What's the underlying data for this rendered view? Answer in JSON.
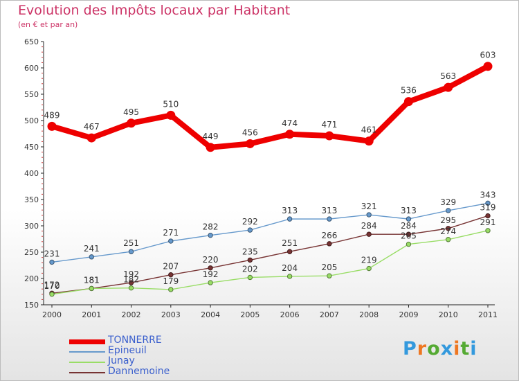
{
  "chart_data": {
    "type": "line",
    "title": "Evolution des Impôts locaux par Habitant",
    "subtitle": "(en € et par an)",
    "xlabel": "",
    "ylabel": "",
    "categories": [
      "2000",
      "2001",
      "2002",
      "2003",
      "2004",
      "2005",
      "2006",
      "2007",
      "2008",
      "2009",
      "2010",
      "2011"
    ],
    "ylim": [
      150,
      650
    ],
    "yticks": [
      150,
      200,
      250,
      300,
      350,
      400,
      450,
      500,
      550,
      600,
      650
    ],
    "grid": false,
    "legend_position": "bottom-left",
    "series": [
      {
        "name": "TONNERRE",
        "color": "#ee0000",
        "values": [
          489,
          467,
          495,
          510,
          449,
          456,
          474,
          471,
          461,
          536,
          563,
          603
        ]
      },
      {
        "name": "Epineuil",
        "color": "#6699cc",
        "values": [
          231,
          241,
          251,
          271,
          282,
          292,
          313,
          313,
          321,
          313,
          329,
          343
        ]
      },
      {
        "name": "Junay",
        "color": "#99dd66",
        "values": [
          170,
          181,
          182,
          179,
          192,
          202,
          204,
          205,
          219,
          265,
          274,
          291
        ]
      },
      {
        "name": "Dannemoine",
        "color": "#773333",
        "values": [
          172,
          181,
          192,
          207,
          220,
          235,
          251,
          266,
          284,
          284,
          295,
          319
        ]
      }
    ]
  },
  "branding": {
    "logo_letters": [
      "P",
      "r",
      "o",
      "x",
      "i",
      "t",
      "i"
    ],
    "logo_colors": [
      "#3399dd",
      "#ee7722",
      "#55aa33",
      "#3399dd",
      "#ee7722",
      "#55aa33",
      "#3399dd"
    ]
  }
}
